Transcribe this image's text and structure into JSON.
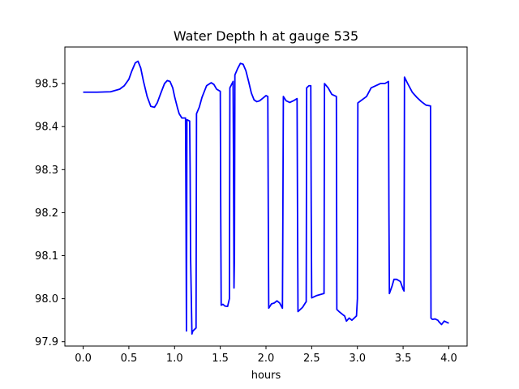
{
  "chart_data": {
    "type": "line",
    "title": "Water Depth h at gauge 535",
    "xlabel": "hours",
    "ylabel": "",
    "xlim": [
      -0.2,
      4.2
    ],
    "ylim": [
      97.89,
      98.585
    ],
    "xticks": [
      0.0,
      0.5,
      1.0,
      1.5,
      2.0,
      2.5,
      3.0,
      3.5,
      4.0
    ],
    "xtick_labels": [
      "0.0",
      "0.5",
      "1.0",
      "1.5",
      "2.0",
      "2.5",
      "3.0",
      "3.5",
      "4.0"
    ],
    "yticks": [
      97.9,
      98.0,
      98.1,
      98.2,
      98.3,
      98.4,
      98.5
    ],
    "ytick_labels": [
      "97.9",
      "98.0",
      "98.1",
      "98.2",
      "98.3",
      "98.4",
      "98.5"
    ],
    "grid": false,
    "line_color": "#0000ff",
    "series": [
      {
        "name": "",
        "x": [
          0.0,
          0.15,
          0.3,
          0.4,
          0.45,
          0.5,
          0.53,
          0.57,
          0.6,
          0.63,
          0.66,
          0.7,
          0.74,
          0.78,
          0.81,
          0.85,
          0.89,
          0.92,
          0.95,
          0.98,
          1.0,
          1.03,
          1.05,
          1.08,
          1.1,
          1.12,
          1.125,
          1.13,
          1.135,
          1.165,
          1.17,
          1.175,
          1.19,
          1.2,
          1.235,
          1.24,
          1.27,
          1.3,
          1.35,
          1.4,
          1.43,
          1.46,
          1.5,
          1.505,
          1.51,
          1.53,
          1.55,
          1.58,
          1.6,
          1.605,
          1.64,
          1.645,
          1.65,
          1.655,
          1.66,
          1.69,
          1.72,
          1.75,
          1.78,
          1.81,
          1.84,
          1.87,
          1.9,
          1.93,
          1.96,
          2.0,
          2.02,
          2.025,
          2.03,
          2.06,
          2.09,
          2.12,
          2.15,
          2.18,
          2.185,
          2.19,
          2.22,
          2.26,
          2.3,
          2.34,
          2.345,
          2.35,
          2.4,
          2.43,
          2.44,
          2.445,
          2.47,
          2.49,
          2.495,
          2.5,
          2.55,
          2.6,
          2.63,
          2.635,
          2.64,
          2.68,
          2.72,
          2.77,
          2.775,
          2.8,
          2.84,
          2.86,
          2.88,
          2.91,
          2.94,
          2.99,
          3.0,
          3.005,
          3.1,
          3.15,
          3.2,
          3.25,
          3.3,
          3.34,
          3.345,
          3.35,
          3.38,
          3.4,
          3.43,
          3.47,
          3.5,
          3.51,
          3.515,
          3.55,
          3.6,
          3.65,
          3.7,
          3.75,
          3.8,
          3.805,
          3.82,
          3.85,
          3.88,
          3.89,
          3.92,
          3.95,
          3.98,
          4.0
        ],
        "values": [
          98.48,
          98.48,
          98.481,
          98.487,
          98.495,
          98.51,
          98.528,
          98.548,
          98.552,
          98.536,
          98.505,
          98.47,
          98.447,
          98.445,
          98.455,
          98.478,
          98.5,
          98.507,
          98.505,
          98.49,
          98.47,
          98.445,
          98.43,
          98.42,
          98.42,
          98.42,
          98.2,
          97.925,
          98.416,
          98.413,
          98.3,
          98.1,
          97.918,
          97.925,
          97.932,
          98.43,
          98.445,
          98.468,
          98.495,
          98.502,
          98.498,
          98.487,
          98.482,
          98.2,
          97.985,
          97.987,
          97.983,
          97.982,
          98.0,
          98.49,
          98.505,
          98.3,
          98.025,
          98.1,
          98.52,
          98.535,
          98.547,
          98.545,
          98.53,
          98.505,
          98.478,
          98.462,
          98.458,
          98.46,
          98.465,
          98.472,
          98.47,
          98.2,
          97.978,
          97.988,
          97.99,
          97.995,
          97.99,
          97.978,
          98.2,
          98.47,
          98.46,
          98.456,
          98.46,
          98.465,
          98.2,
          97.97,
          97.98,
          97.99,
          97.993,
          98.49,
          98.495,
          98.495,
          98.2,
          98.002,
          98.007,
          98.01,
          98.012,
          98.012,
          98.5,
          98.49,
          98.475,
          98.47,
          97.975,
          97.97,
          97.963,
          97.96,
          97.948,
          97.955,
          97.95,
          97.96,
          98.0,
          98.455,
          98.47,
          98.49,
          98.495,
          98.5,
          98.5,
          98.505,
          98.2,
          98.012,
          98.03,
          98.045,
          98.045,
          98.04,
          98.022,
          98.018,
          98.515,
          98.5,
          98.48,
          98.468,
          98.458,
          98.45,
          98.448,
          97.955,
          97.952,
          97.953,
          97.95,
          97.947,
          97.94,
          97.948,
          97.945,
          97.943
        ]
      }
    ]
  }
}
